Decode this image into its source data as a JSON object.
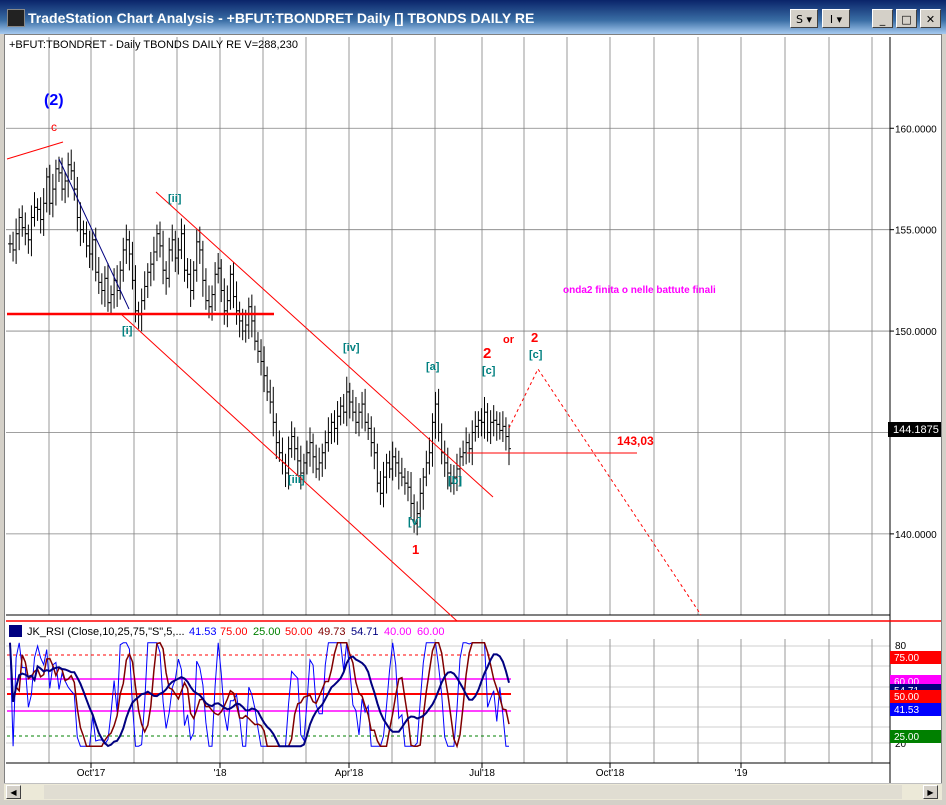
{
  "window": {
    "title": "TradeStation Chart Analysis - +BFUT:TBONDRET Daily [] TBONDS DAILY RE",
    "btn_s": "S ▾",
    "btn_i": "I ▾",
    "min": "_",
    "max": "□",
    "close": "✕"
  },
  "chart_header": "+BFUT:TBONDRET - Daily  TBONDS DAILY RE  V=288,230",
  "price_axis": {
    "labels": [
      "160.0000",
      "155.0000",
      "150.0000",
      "145.0000",
      "140.0000"
    ],
    "last_price": "144.1875",
    "last_price_color": "#000000"
  },
  "time_axis": {
    "labels": [
      "Oct'17",
      "'18",
      "Apr'18",
      "Jul'18",
      "Oct'18",
      "'19"
    ]
  },
  "annotations": {
    "wave2_big": "(2)",
    "c_top": "c",
    "i": "[i]",
    "ii": "[ii]",
    "iii": "[iii]",
    "iv": "[iv]",
    "v": "[v]",
    "one": "1",
    "a": "[a]",
    "b": "[b]",
    "c": "[c]",
    "two_red": "2",
    "or": "or",
    "two_red_alt": "2",
    "c_alt": "[c]",
    "level": "143,03",
    "note": "onda2 finita o nelle battute finali"
  },
  "indicator": {
    "name": "JK_RSI (Close,10,25,75,\"S\",5,...",
    "v1": "41.53",
    "v2": "75.00",
    "v3": "25.00",
    "v4": "50.00",
    "v5": "49.73",
    "v6": "54.71",
    "v7": "40.00",
    "v8": "60.00",
    "axis_labels": [
      "80",
      "20"
    ],
    "value_boxes": [
      {
        "text": "75.00",
        "color": "#ff0000"
      },
      {
        "text": "60.00",
        "color": "#ff00ff"
      },
      {
        "text": "54.71",
        "color": "#000080"
      },
      {
        "text": "50.00",
        "color": "#ff0000"
      },
      {
        "text": "41.53",
        "color": "#0000ff"
      },
      {
        "text": "25.00",
        "color": "#008000"
      }
    ]
  },
  "chart_data": {
    "type": "bar",
    "series_name": "+BFUT:TBONDRET",
    "ylim": [
      136.0,
      164.5
    ],
    "levels": [
      150.0,
      143.03
    ],
    "x_categories": [
      "Oct'17",
      "'18",
      "Apr'18",
      "Jul'18",
      "Oct'18",
      "'19"
    ],
    "closes": [
      154.3,
      154.0,
      154.8,
      155.6,
      155.1,
      154.8,
      154.5,
      155.6,
      156.1,
      156.0,
      155.5,
      156.3,
      157.6,
      156.3,
      157.0,
      158.0,
      157.8,
      157.0,
      157.4,
      158.2,
      157.9,
      157.0,
      155.6,
      155.0,
      154.8,
      154.2,
      153.8,
      154.5,
      152.9,
      152.4,
      152.0,
      152.6,
      151.4,
      151.8,
      152.5,
      152.0,
      153.0,
      154.0,
      154.5,
      153.8,
      152.5,
      151.0,
      150.8,
      151.5,
      152.2,
      152.9,
      153.3,
      153.9,
      154.8,
      154.2,
      153.0,
      152.6,
      154.0,
      154.5,
      153.6,
      154.0,
      154.8,
      153.0,
      152.8,
      152.0,
      153.0,
      154.4,
      154.0,
      152.5,
      151.5,
      151.2,
      151.8,
      152.8,
      153.1,
      152.0,
      151.0,
      151.5,
      152.8,
      151.7,
      151.0,
      150.5,
      150.0,
      150.3,
      151.2,
      150.5,
      149.5,
      149.0,
      148.5,
      147.8,
      147.0,
      146.5,
      145.5,
      144.5,
      144.0,
      143.5,
      143.0,
      144.2,
      144.8,
      144.2,
      143.6,
      143.0,
      143.5,
      144.0,
      144.5,
      143.8,
      143.2,
      143.5,
      144.0,
      144.5,
      145.0,
      145.5,
      145.2,
      145.8,
      146.3,
      146.0,
      147.0,
      146.5,
      146.0,
      145.5,
      146.0,
      146.4,
      145.5,
      145.2,
      144.5,
      144.0,
      142.5,
      142.0,
      142.8,
      143.5,
      143.2,
      143.8,
      143.5,
      143.0,
      142.8,
      142.5,
      142.3,
      141.5,
      140.5,
      141.0,
      142.0,
      142.8,
      143.5,
      144.0,
      145.5,
      146.4,
      145.0,
      144.0,
      143.5,
      143.0,
      142.5,
      142.8,
      143.2,
      143.8,
      144.0,
      144.5,
      144.2,
      145.0,
      145.3,
      145.6,
      145.5,
      146.0,
      145.0,
      145.5,
      145.6,
      145.4,
      145.1,
      145.3,
      144.8,
      144.2
    ],
    "rsi_levels": [
      75,
      60,
      50,
      25
    ]
  }
}
